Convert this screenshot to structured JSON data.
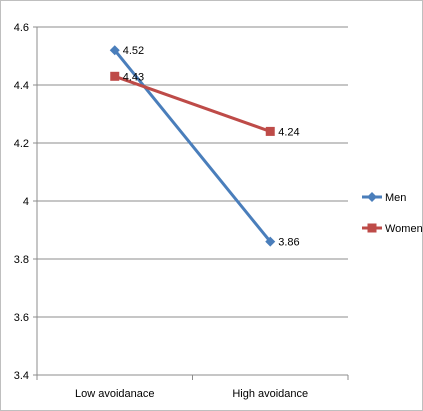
{
  "chart_data": {
    "type": "line",
    "categories": [
      "Low avoidanace",
      "High avoidance"
    ],
    "series": [
      {
        "name": "Men",
        "values": [
          4.52,
          3.86
        ],
        "color": "#4a7ebb",
        "marker": "diamond"
      },
      {
        "name": "Women",
        "values": [
          4.43,
          4.24
        ],
        "color": "#be4b48",
        "marker": "square"
      }
    ],
    "ylim": [
      3.4,
      4.6
    ],
    "y_ticks": [
      "3.4",
      "3.6",
      "3.8",
      "4",
      "4.2",
      "4.4",
      "4.6"
    ],
    "data_labels": [
      [
        "4.52",
        "3.86"
      ],
      [
        "4.43",
        "4.24"
      ]
    ],
    "grid": true,
    "legend_position": "right",
    "title": "",
    "xlabel": "",
    "ylabel": ""
  }
}
